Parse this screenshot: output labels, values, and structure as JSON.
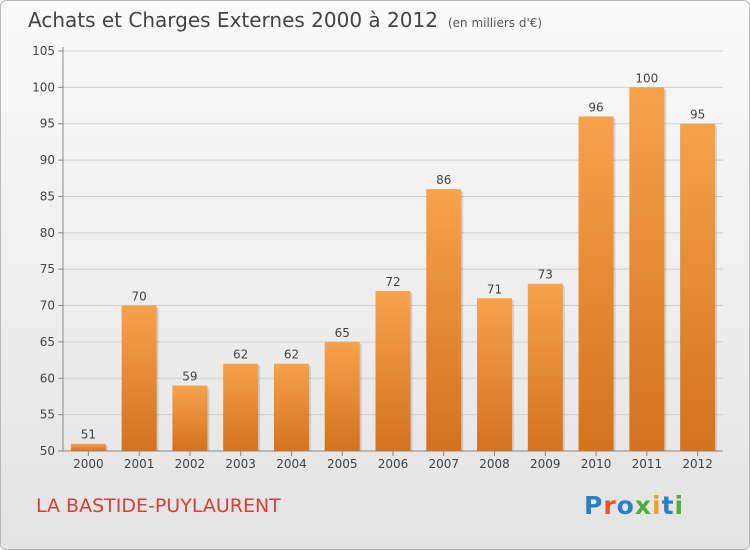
{
  "header": {
    "title": "Achats et Charges Externes 2000 à 2012",
    "subtitle": "(en milliers d'€)"
  },
  "footer": {
    "location": "LA BASTIDE-PUYLAURENT",
    "logo": [
      "P",
      "r",
      "o",
      "x",
      "i",
      "t",
      "i"
    ]
  },
  "colors": {
    "bar_light": "#f6a24c",
    "bar_dark": "#d4721e",
    "location_text": "#d0413a"
  },
  "chart_data": {
    "type": "bar",
    "categories": [
      "2000",
      "2001",
      "2002",
      "2003",
      "2004",
      "2005",
      "2006",
      "2007",
      "2008",
      "2009",
      "2010",
      "2011",
      "2012"
    ],
    "values": [
      51,
      70,
      59,
      62,
      62,
      65,
      72,
      86,
      71,
      73,
      96,
      100,
      95
    ],
    "data_labels": [
      "51",
      "70",
      "59",
      "62",
      "62",
      "65",
      "72",
      "86",
      "71",
      "73",
      "96",
      "100",
      "95"
    ],
    "y_ticks": [
      50,
      55,
      60,
      65,
      70,
      75,
      80,
      85,
      90,
      95,
      100,
      105
    ],
    "ylim": [
      50,
      105
    ],
    "grid": true
  }
}
